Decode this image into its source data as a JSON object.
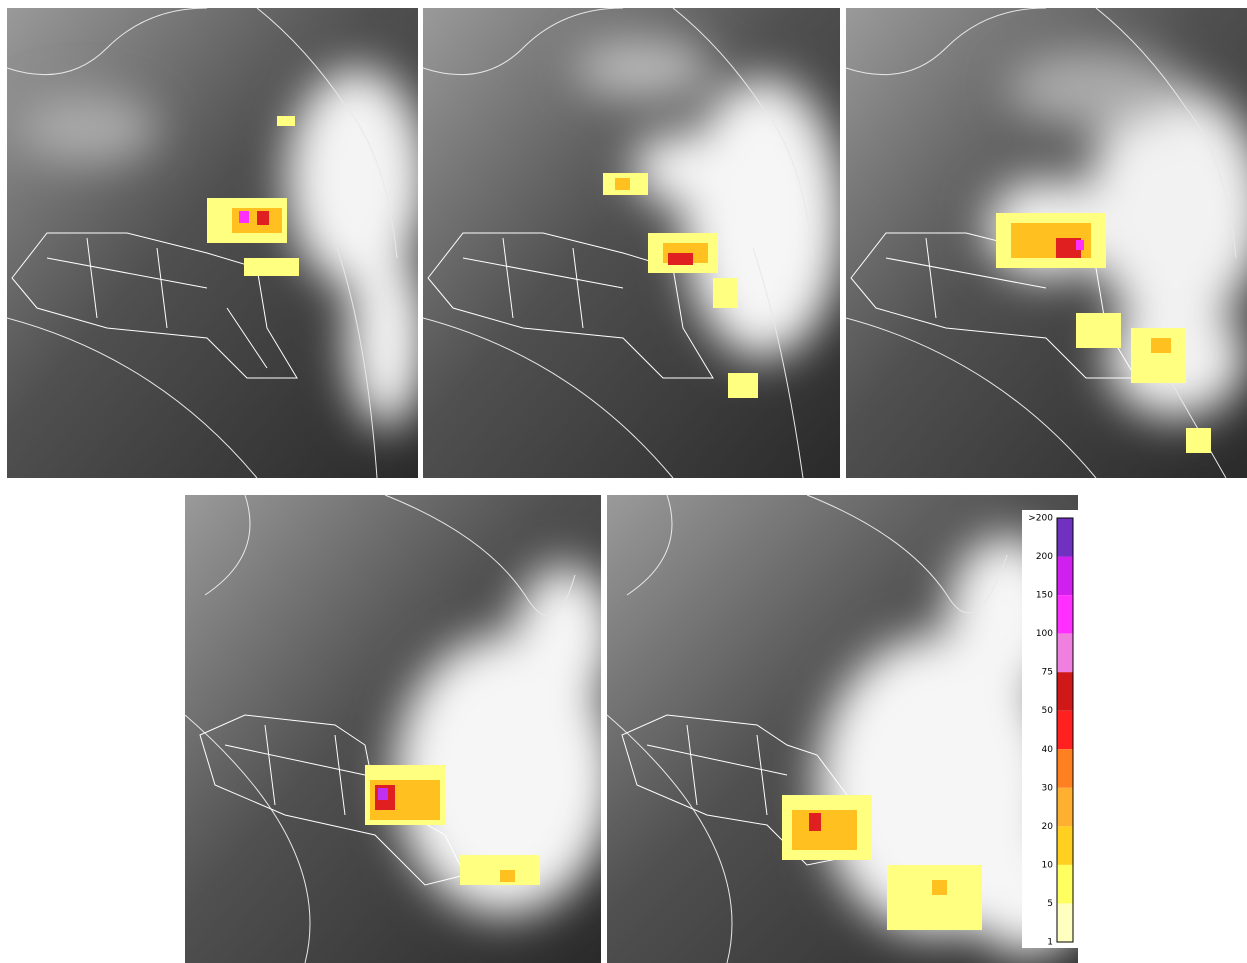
{
  "colorbar": {
    "labels": [
      ">200",
      "200",
      "150",
      "100",
      "75",
      "50",
      "40",
      "30",
      "20",
      "10",
      "5",
      "1"
    ],
    "colors": [
      "#7030c0",
      "#d020f0",
      "#ff30ff",
      "#f080e0",
      "#d01818",
      "#ff2020",
      "#ff8020",
      "#ffb030",
      "#ffd020",
      "#ffff60",
      "#ffffc0"
    ]
  }
}
